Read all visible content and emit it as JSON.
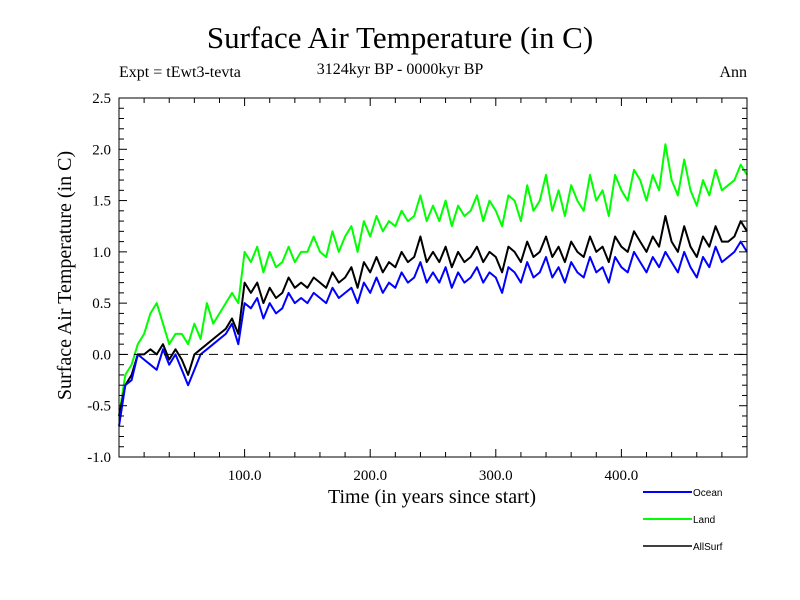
{
  "header": {
    "title": "Surface Air Temperature (in C)",
    "experiment": "Expt = tEwt3-tevta",
    "period": "3124kyr BP - 0000kyr BP",
    "season": "Ann"
  },
  "chart_data": {
    "type": "line",
    "title": "Surface Air Temperature (in C)",
    "subtitle": "3124kyr BP - 0000kyr BP",
    "xlabel": "Time (in years since start)",
    "ylabel": "Surface Air Temperature (in C)",
    "xlim": [
      0,
      500
    ],
    "ylim": [
      -1.0,
      2.5
    ],
    "xticks": [
      100,
      200,
      300,
      400
    ],
    "xtick_labels": [
      "100.0",
      "200.0",
      "300.0",
      "400.0"
    ],
    "yticks": [
      -1.0,
      -0.5,
      0.0,
      0.5,
      1.0,
      1.5,
      2.0,
      2.5
    ],
    "ytick_labels": [
      "-1.0",
      "-0.5",
      "0.0",
      "0.5",
      "1.0",
      "1.5",
      "2.0",
      "2.5"
    ],
    "reference_line": {
      "y": 0.0,
      "style": "dashed"
    },
    "grid": false,
    "legend_position": "bottom-right",
    "x": [
      0,
      5,
      10,
      15,
      20,
      25,
      30,
      35,
      40,
      45,
      50,
      55,
      60,
      65,
      70,
      75,
      80,
      85,
      90,
      95,
      100,
      105,
      110,
      115,
      120,
      125,
      130,
      135,
      140,
      145,
      150,
      155,
      160,
      165,
      170,
      175,
      180,
      185,
      190,
      195,
      200,
      205,
      210,
      215,
      220,
      225,
      230,
      235,
      240,
      245,
      250,
      255,
      260,
      265,
      270,
      275,
      280,
      285,
      290,
      295,
      300,
      305,
      310,
      315,
      320,
      325,
      330,
      335,
      340,
      345,
      350,
      355,
      360,
      365,
      370,
      375,
      380,
      385,
      390,
      395,
      400,
      405,
      410,
      415,
      420,
      425,
      430,
      435,
      440,
      445,
      450,
      455,
      460,
      465,
      470,
      475,
      480,
      485,
      490,
      495,
      500
    ],
    "series": [
      {
        "name": "Ocean",
        "color": "#0000ff",
        "values": [
          -0.7,
          -0.3,
          -0.25,
          0.0,
          -0.05,
          -0.1,
          -0.15,
          0.05,
          -0.1,
          0.0,
          -0.15,
          -0.3,
          -0.15,
          0.0,
          0.05,
          0.1,
          0.15,
          0.2,
          0.3,
          0.1,
          0.5,
          0.45,
          0.55,
          0.35,
          0.5,
          0.4,
          0.45,
          0.6,
          0.5,
          0.55,
          0.5,
          0.6,
          0.55,
          0.5,
          0.65,
          0.55,
          0.6,
          0.65,
          0.5,
          0.7,
          0.6,
          0.75,
          0.6,
          0.7,
          0.65,
          0.8,
          0.7,
          0.75,
          0.9,
          0.7,
          0.8,
          0.7,
          0.85,
          0.65,
          0.8,
          0.7,
          0.75,
          0.85,
          0.7,
          0.8,
          0.75,
          0.6,
          0.85,
          0.8,
          0.7,
          0.9,
          0.75,
          0.8,
          0.95,
          0.75,
          0.85,
          0.7,
          0.9,
          0.8,
          0.75,
          0.95,
          0.8,
          0.85,
          0.7,
          0.95,
          0.85,
          0.8,
          1.0,
          0.9,
          0.8,
          0.95,
          0.85,
          1.0,
          0.9,
          0.8,
          1.0,
          0.85,
          0.75,
          0.95,
          0.85,
          1.05,
          0.9,
          0.95,
          1.0,
          1.1,
          1.0
        ]
      },
      {
        "name": "Land",
        "color": "#00ff00",
        "values": [
          -0.6,
          -0.2,
          -0.1,
          0.1,
          0.2,
          0.4,
          0.5,
          0.3,
          0.1,
          0.2,
          0.2,
          0.1,
          0.3,
          0.15,
          0.5,
          0.3,
          0.4,
          0.5,
          0.6,
          0.5,
          1.0,
          0.9,
          1.05,
          0.8,
          1.0,
          0.85,
          0.9,
          1.05,
          0.9,
          1.0,
          1.0,
          1.15,
          1.0,
          0.95,
          1.2,
          1.0,
          1.15,
          1.25,
          1.0,
          1.3,
          1.15,
          1.35,
          1.2,
          1.3,
          1.25,
          1.4,
          1.3,
          1.35,
          1.55,
          1.3,
          1.45,
          1.3,
          1.5,
          1.25,
          1.45,
          1.35,
          1.4,
          1.55,
          1.3,
          1.5,
          1.4,
          1.25,
          1.55,
          1.5,
          1.3,
          1.65,
          1.4,
          1.5,
          1.75,
          1.4,
          1.6,
          1.35,
          1.65,
          1.5,
          1.4,
          1.75,
          1.5,
          1.6,
          1.35,
          1.75,
          1.6,
          1.5,
          1.8,
          1.7,
          1.5,
          1.75,
          1.6,
          2.05,
          1.7,
          1.55,
          1.9,
          1.6,
          1.45,
          1.7,
          1.55,
          1.8,
          1.6,
          1.65,
          1.7,
          1.85,
          1.75
        ]
      },
      {
        "name": "AllSurf",
        "color": "#000000",
        "values": [
          -0.6,
          -0.3,
          -0.2,
          0.0,
          0.0,
          0.05,
          0.0,
          0.1,
          -0.05,
          0.05,
          -0.05,
          -0.2,
          0.0,
          0.05,
          0.1,
          0.15,
          0.2,
          0.25,
          0.35,
          0.2,
          0.7,
          0.6,
          0.7,
          0.5,
          0.65,
          0.55,
          0.6,
          0.75,
          0.65,
          0.7,
          0.65,
          0.75,
          0.7,
          0.65,
          0.8,
          0.7,
          0.75,
          0.85,
          0.65,
          0.9,
          0.8,
          0.95,
          0.8,
          0.9,
          0.85,
          1.0,
          0.9,
          0.95,
          1.15,
          0.9,
          1.0,
          0.9,
          1.05,
          0.85,
          1.0,
          0.9,
          0.95,
          1.05,
          0.9,
          1.0,
          0.95,
          0.8,
          1.05,
          1.0,
          0.9,
          1.1,
          0.95,
          1.0,
          1.15,
          0.95,
          1.05,
          0.9,
          1.1,
          1.0,
          0.95,
          1.15,
          1.0,
          1.05,
          0.9,
          1.15,
          1.05,
          1.0,
          1.2,
          1.1,
          1.0,
          1.15,
          1.05,
          1.35,
          1.1,
          1.0,
          1.25,
          1.05,
          0.95,
          1.15,
          1.05,
          1.25,
          1.1,
          1.1,
          1.15,
          1.3,
          1.2
        ]
      }
    ]
  }
}
